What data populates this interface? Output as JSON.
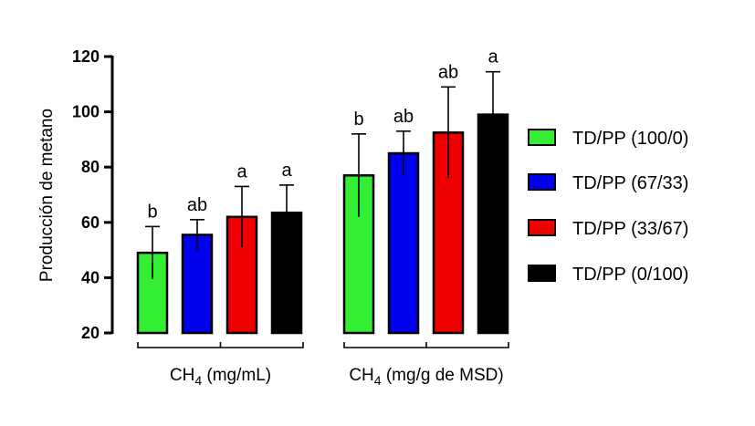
{
  "chart_data": {
    "type": "bar",
    "ylabel": "Producción de metano",
    "ylim": [
      20,
      120
    ],
    "yticks": [
      20,
      40,
      60,
      80,
      100,
      120
    ],
    "groups": [
      {
        "label": "CH",
        "subscript": "4",
        "suffix": " (mg/mL)"
      },
      {
        "label": "CH",
        "subscript": "4",
        "suffix": " (mg/g de MSD)"
      }
    ],
    "series": [
      {
        "name": "TD/PP (100/0)",
        "color": "#33ee33",
        "values": [
          49,
          77
        ],
        "errors": [
          9.5,
          15
        ],
        "letters": [
          "b",
          "b"
        ]
      },
      {
        "name": "TD/PP (67/33)",
        "color": "#0000ee",
        "values": [
          55.5,
          85
        ],
        "errors": [
          5.5,
          8
        ],
        "letters": [
          "ab",
          "ab"
        ]
      },
      {
        "name": "TD/PP (33/67)",
        "color": "#ee0000",
        "values": [
          62,
          92.5
        ],
        "errors": [
          11,
          16.5
        ],
        "letters": [
          "a",
          "ab"
        ]
      },
      {
        "name": "TD/PP (0/100)",
        "color": "#000000",
        "values": [
          63.5,
          99
        ],
        "errors": [
          10,
          15.5
        ],
        "letters": [
          "a",
          "a"
        ]
      }
    ]
  }
}
